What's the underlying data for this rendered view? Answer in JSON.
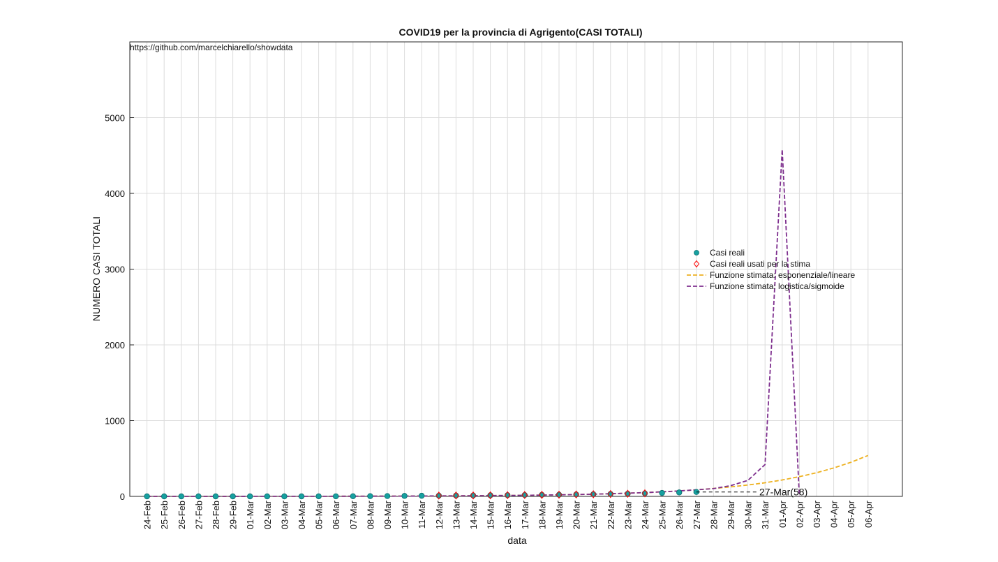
{
  "chart_data": {
    "type": "line",
    "title": "COVID19 per la provincia di Agrigento(CASI TOTALI)",
    "source": "https://github.com/marcelchiarello/showdata",
    "x_label": "data",
    "y_label": "NUMERO CASI TOTALI",
    "categories": [
      "24-Feb",
      "25-Feb",
      "26-Feb",
      "27-Feb",
      "28-Feb",
      "29-Feb",
      "01-Mar",
      "02-Mar",
      "03-Mar",
      "04-Mar",
      "05-Mar",
      "06-Mar",
      "07-Mar",
      "08-Mar",
      "09-Mar",
      "10-Mar",
      "11-Mar",
      "12-Mar",
      "13-Mar",
      "14-Mar",
      "15-Mar",
      "16-Mar",
      "17-Mar",
      "18-Mar",
      "19-Mar",
      "20-Mar",
      "21-Mar",
      "22-Mar",
      "23-Mar",
      "24-Mar",
      "25-Mar",
      "26-Mar",
      "27-Mar",
      "28-Mar",
      "29-Mar",
      "30-Mar",
      "31-Mar",
      "01-Apr",
      "02-Apr",
      "03-Apr",
      "04-Apr",
      "05-Apr",
      "06-Apr"
    ],
    "ylim": [
      0,
      6000
    ],
    "yticks": [
      0,
      1000,
      2000,
      3000,
      4000,
      5000
    ],
    "grid": true,
    "legend": "right",
    "annotation": "27-Mar(58)",
    "series": [
      {
        "name": "Casi reali",
        "color": "#17a0a0",
        "style": "marker",
        "values": [
          0,
          0,
          0,
          0,
          0,
          0,
          0,
          0,
          0,
          0,
          1,
          1,
          2,
          3,
          4,
          6,
          8,
          10,
          11,
          12,
          14,
          16,
          18,
          20,
          22,
          25,
          28,
          31,
          35,
          40,
          45,
          52,
          58,
          null,
          null,
          null,
          null,
          null,
          null,
          null,
          null,
          null,
          null
        ]
      },
      {
        "name": "Casi reali usati per la stima",
        "color": "#ff0000",
        "style": "diamond",
        "values": [
          null,
          null,
          null,
          null,
          null,
          null,
          null,
          null,
          null,
          null,
          null,
          null,
          null,
          null,
          null,
          null,
          null,
          10,
          11,
          12,
          14,
          16,
          18,
          20,
          22,
          25,
          28,
          31,
          35,
          40,
          null,
          null,
          null,
          null,
          null,
          null,
          null,
          null,
          null,
          null,
          null,
          null,
          null
        ]
      },
      {
        "name": "Funzione stimata: esponenziale/lineare",
        "color": "#edb120",
        "style": "dashed",
        "values": [
          0,
          0,
          0,
          0,
          0,
          0,
          1,
          1,
          1,
          1,
          1,
          2,
          2,
          3,
          3,
          4,
          5,
          6,
          7,
          8,
          10,
          12,
          14,
          17,
          20,
          24,
          29,
          35,
          42,
          50,
          60,
          72,
          87,
          104,
          125,
          150,
          180,
          217,
          260,
          312,
          375,
          450,
          540
        ]
      },
      {
        "name": "Funzione stimata: logistica/sigmoide",
        "color": "#7e2f8e",
        "style": "dashed",
        "values": [
          0,
          0,
          0,
          0,
          0,
          0,
          1,
          1,
          1,
          1,
          1,
          2,
          2,
          3,
          3,
          4,
          5,
          6,
          7,
          8,
          10,
          12,
          14,
          17,
          20,
          24,
          29,
          35,
          42,
          50,
          60,
          72,
          87,
          102,
          142,
          211,
          420,
          4580,
          0,
          null,
          null,
          null,
          null
        ]
      }
    ]
  }
}
